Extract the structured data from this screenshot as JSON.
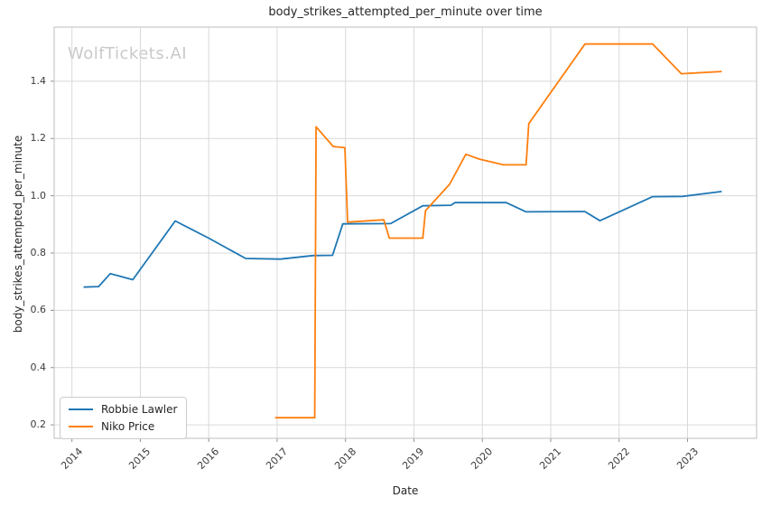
{
  "figure": {
    "watermark": "WolfTickets.AI",
    "colors": {
      "series_blue": "#1f77b4",
      "series_orange": "#ff7f0e",
      "grid": "#d9d9d9",
      "spine": "#c9c9c9",
      "tick_mark": "#8f8f8f",
      "text": "#262626",
      "watermark": "#c9c9c9"
    }
  },
  "chart_data": {
    "type": "line",
    "title": "body_strikes_attempted_per_minute over time",
    "xlabel": "Date",
    "ylabel": "body_strikes_attempted_per_minute",
    "grid": true,
    "legend_position": "lower left",
    "xlim": [
      2013.74,
      2024.01
    ],
    "ylim": [
      0.153,
      1.589
    ],
    "x_ticks": [
      2014,
      2015,
      2016,
      2017,
      2018,
      2019,
      2020,
      2021,
      2022,
      2023
    ],
    "x_tick_labels": [
      "2014",
      "2015",
      "2016",
      "2017",
      "2018",
      "2019",
      "2020",
      "2021",
      "2022",
      "2023"
    ],
    "y_ticks": [
      0.2,
      0.4,
      0.6,
      0.8,
      1.0,
      1.2,
      1.4
    ],
    "y_tick_labels": [
      "0.2",
      "0.4",
      "0.6",
      "0.8",
      "1.0",
      "1.2",
      "1.4"
    ],
    "series": [
      {
        "name": "Robbie Lawler",
        "color": "#1f77b4",
        "x": [
          2014.17,
          2014.39,
          2014.56,
          2014.89,
          2015.51,
          2016.0,
          2016.54,
          2017.05,
          2017.52,
          2017.81,
          2017.96,
          2018.66,
          2019.13,
          2019.54,
          2019.6,
          2020.35,
          2020.64,
          2021.5,
          2021.72,
          2022.49,
          2022.93,
          2023.5
        ],
        "y": [
          0.681,
          0.683,
          0.728,
          0.707,
          0.912,
          0.852,
          0.781,
          0.779,
          0.791,
          0.792,
          0.902,
          0.903,
          0.965,
          0.967,
          0.976,
          0.976,
          0.944,
          0.945,
          0.913,
          0.997,
          0.998,
          1.015
        ]
      },
      {
        "name": "Niko Price",
        "color": "#ff7f0e",
        "x": [
          2016.97,
          2017.55,
          2017.57,
          2017.82,
          2017.99,
          2018.03,
          2018.56,
          2018.64,
          2019.13,
          2019.17,
          2019.52,
          2019.76,
          2019.96,
          2020.31,
          2020.64,
          2020.68,
          2021.5,
          2022.49,
          2022.91,
          2023.5
        ],
        "y": [
          0.225,
          0.225,
          1.241,
          1.172,
          1.168,
          0.908,
          0.916,
          0.852,
          0.852,
          0.948,
          1.04,
          1.145,
          1.128,
          1.108,
          1.108,
          1.252,
          1.53,
          1.53,
          1.426,
          1.434
        ]
      }
    ]
  }
}
